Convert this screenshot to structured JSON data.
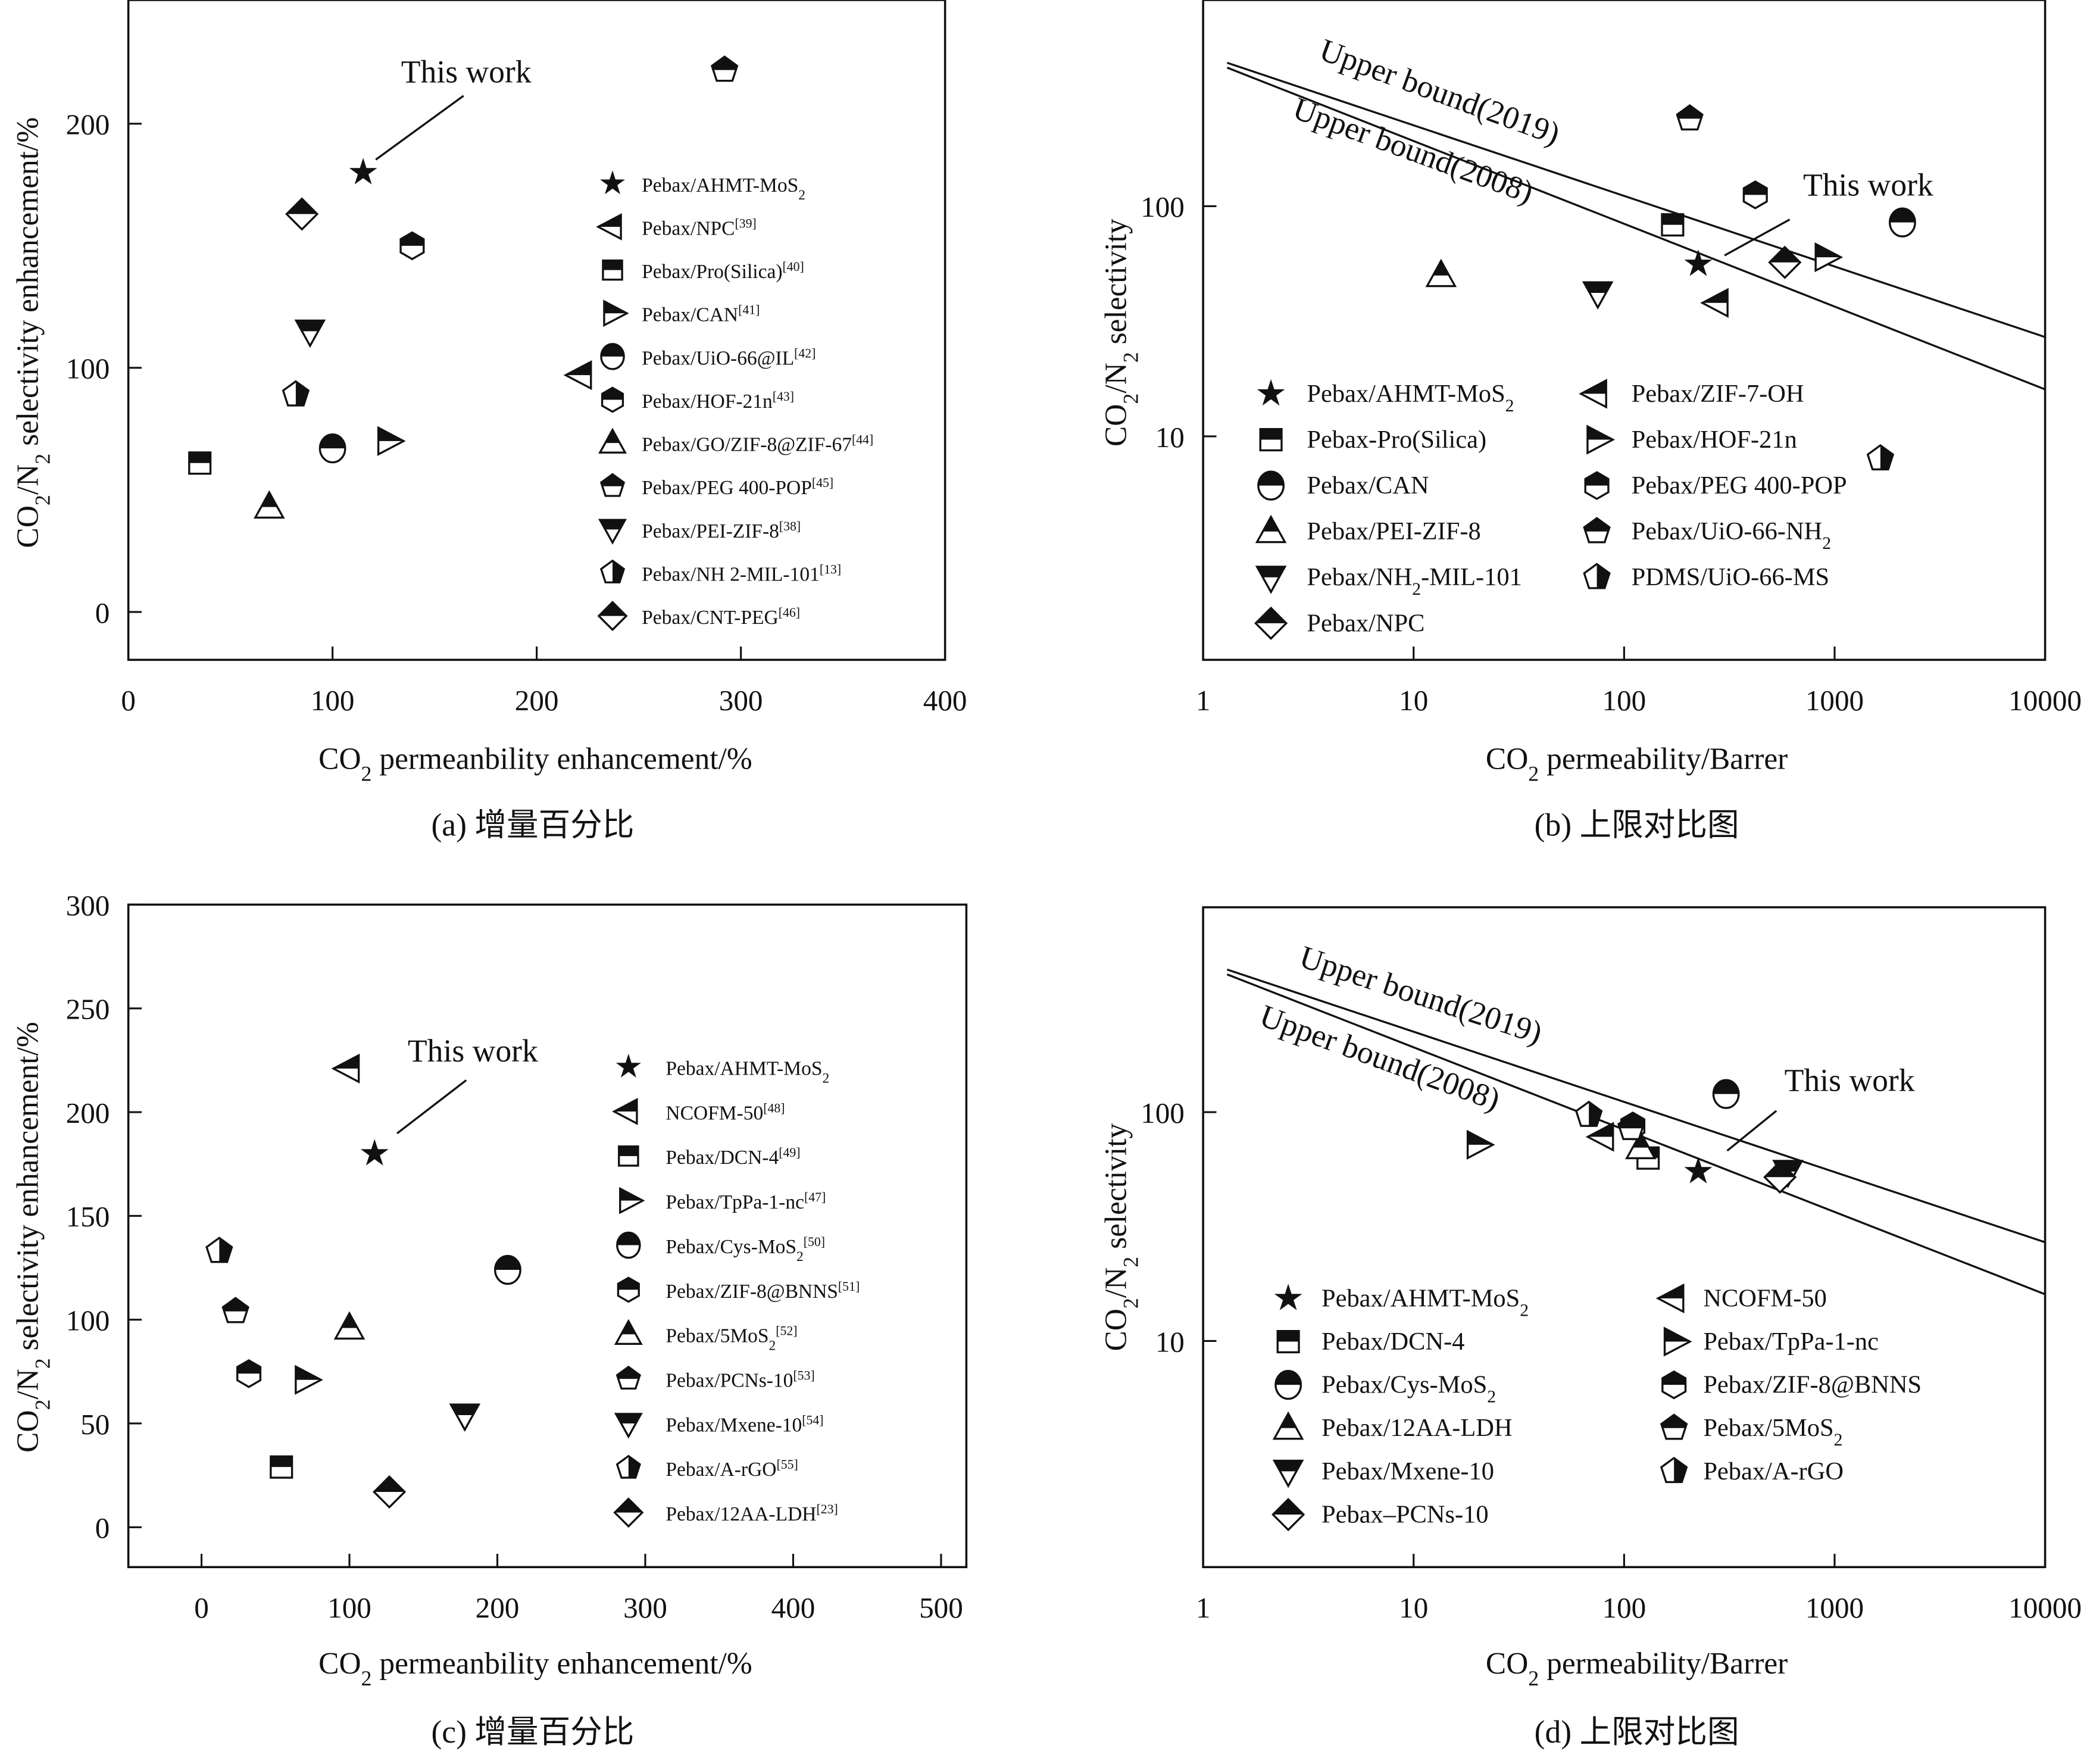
{
  "chart_data": [
    {
      "id": "a",
      "type": "scatter",
      "caption": "(a) 增量百分比",
      "xlabel": "CO2 permeanbility enhancement/%",
      "ylabel": "CO2/N2 selectivity enhancement/%",
      "xscale": "linear",
      "yscale": "linear",
      "xlim": [
        0,
        400
      ],
      "ylim": [
        -20,
        250
      ],
      "xticks": [
        0,
        100,
        200,
        300,
        400
      ],
      "yticks": [
        0,
        100,
        200
      ],
      "annotation": {
        "text": "This work",
        "target": "Pebax/AHMT-MoS2"
      },
      "legend_position": "right",
      "series": [
        {
          "name": "Pebax/AHMT-MoS2",
          "ref": "",
          "marker": "star",
          "x": 115,
          "y": 180
        },
        {
          "name": "Pebax/NPC",
          "ref": "[39]",
          "marker": "tri-left",
          "x": 222,
          "y": 97
        },
        {
          "name": "Pebax/Pro(Silica)",
          "ref": "[40]",
          "marker": "square",
          "x": 35,
          "y": 61
        },
        {
          "name": "Pebax/CAN",
          "ref": "[41]",
          "marker": "tri-right",
          "x": 127,
          "y": 70
        },
        {
          "name": "Pebax/UiO-66@IL",
          "ref": "[42]",
          "marker": "circle",
          "x": 100,
          "y": 67
        },
        {
          "name": "Pebax/HOF-21n",
          "ref": "[43]",
          "marker": "hexagon",
          "x": 139,
          "y": 150
        },
        {
          "name": "Pebax/GO/ZIF-8@ZIF-67",
          "ref": "[44]",
          "marker": "tri-up",
          "x": 69,
          "y": 43
        },
        {
          "name": "Pebax/PEG 400-POP",
          "ref": "[45]",
          "marker": "pentagon",
          "x": 292,
          "y": 222
        },
        {
          "name": "Pebax/PEI-ZIF-8",
          "ref": "[38]",
          "marker": "tri-down",
          "x": 89,
          "y": 115
        },
        {
          "name": "Pebax/NH 2-MIL-101",
          "ref": "[13]",
          "marker": "pentagon-half",
          "x": 82,
          "y": 89
        },
        {
          "name": "Pebax/CNT-PEG",
          "ref": "[46]",
          "marker": "diamond",
          "x": 85,
          "y": 163
        }
      ]
    },
    {
      "id": "b",
      "type": "scatter",
      "caption": "(b) 上限对比图",
      "xlabel": "CO2 permeability/Barrer",
      "ylabel": "CO2/N2 selectivity",
      "xscale": "log",
      "yscale": "log",
      "xlim": [
        1,
        10000
      ],
      "ylim": [
        1,
        1000
      ],
      "xticks": [
        "1",
        "10",
        "100",
        "1000",
        "10000"
      ],
      "yticks": [
        "10",
        "100"
      ],
      "annotation": {
        "text": "This work",
        "target": "Pebax/AHMT-MoS2"
      },
      "upper_bounds": [
        {
          "label": "Upper bound(2019)",
          "points": [
            [
              1.3,
              420
            ],
            [
              10000,
              27
            ]
          ]
        },
        {
          "label": "Upper bound(2008)",
          "points": [
            [
              1.3,
              400
            ],
            [
              10000,
              16
            ]
          ]
        }
      ],
      "legend_position": "bottom-left",
      "series": [
        {
          "name": "Pebax/AHMT-MoS2",
          "marker": "star",
          "x": 225,
          "y": 56
        },
        {
          "name": "Pebax-Pro(Silica)",
          "marker": "square",
          "x": 170,
          "y": 83
        },
        {
          "name": "Pebax/CAN",
          "marker": "circle",
          "x": 2100,
          "y": 85
        },
        {
          "name": "Pebax/PEI-ZIF-8",
          "marker": "tri-up",
          "x": 13.5,
          "y": 50
        },
        {
          "name": "Pebax/NH2-MIL-101",
          "marker": "tri-down",
          "x": 75,
          "y": 42
        },
        {
          "name": "Pebax/NPC",
          "marker": "diamond",
          "x": 580,
          "y": 57
        },
        {
          "name": "Pebax/ZIF-7-OH",
          "marker": "tri-left",
          "x": 280,
          "y": 38
        },
        {
          "name": "Pebax/HOF-21n",
          "marker": "tri-right",
          "x": 900,
          "y": 60
        },
        {
          "name": "Pebax/PEG 400-POP",
          "marker": "hexagon",
          "x": 420,
          "y": 112
        },
        {
          "name": "Pebax/UiO-66-NH2",
          "marker": "pentagon",
          "x": 205,
          "y": 240
        },
        {
          "name": "PDMS/UiO-66-MS",
          "marker": "pentagon-half",
          "x": 1650,
          "y": 8
        }
      ]
    },
    {
      "id": "c",
      "type": "scatter",
      "caption": "(c) 增量百分比",
      "xlabel": "CO2 permeanbility enhancement/%",
      "ylabel": "CO2/N2 selectivity enhancement/%",
      "xscale": "linear",
      "yscale": "linear",
      "xlim": [
        -50,
        500
      ],
      "ylim": [
        -20,
        300
      ],
      "xticks": [
        0,
        100,
        200,
        300,
        400,
        500
      ],
      "yticks": [
        0,
        50,
        100,
        150,
        200,
        250,
        300
      ],
      "annotation": {
        "text": "This work",
        "target": "Pebax/AHMT-MoS2"
      },
      "legend_position": "right",
      "series": [
        {
          "name": "Pebax/AHMT-MoS2",
          "ref": "",
          "marker": "star",
          "x": 117,
          "y": 180
        },
        {
          "name": "NCOFM-50",
          "ref": "[48]",
          "marker": "tri-left",
          "x": 100,
          "y": 221
        },
        {
          "name": "Pebax/DCN-4",
          "ref": "[49]",
          "marker": "square",
          "x": 54,
          "y": 29
        },
        {
          "name": "Pebax/TpPa-1-nc",
          "ref": "[47]",
          "marker": "tri-right",
          "x": 70,
          "y": 71
        },
        {
          "name": "Pebax/Cys-MoS2",
          "ref": "[50]",
          "marker": "circle",
          "x": 207,
          "y": 124
        },
        {
          "name": "Pebax/ZIF-8@BNNS",
          "ref": "[51]",
          "marker": "hexagon",
          "x": 32,
          "y": 74
        },
        {
          "name": "Pebax/5MoS2",
          "ref": "[52]",
          "marker": "tri-up",
          "x": 100,
          "y": 96
        },
        {
          "name": "Pebax/PCNs-10",
          "ref": "[53]",
          "marker": "pentagon",
          "x": 23,
          "y": 104
        },
        {
          "name": "Pebax/Mxene-10",
          "ref": "[54]",
          "marker": "tri-down",
          "x": 178,
          "y": 54
        },
        {
          "name": "Pebax/A-rGO",
          "ref": "[55]",
          "marker": "pentagon-half",
          "x": 12,
          "y": 133
        },
        {
          "name": "Pebax/12AA-LDH",
          "ref": "[23]",
          "marker": "diamond",
          "x": 127,
          "y": 17
        }
      ]
    },
    {
      "id": "d",
      "type": "scatter",
      "caption": "(d) 上限对比图",
      "xlabel": "CO2 permeability/Barrer",
      "ylabel": "CO2/N2 selectivity",
      "xscale": "log",
      "yscale": "log",
      "xlim": [
        1,
        10000
      ],
      "ylim": [
        1,
        1000
      ],
      "xticks": [
        "1",
        "10",
        "100",
        "1000",
        "10000"
      ],
      "yticks": [
        "10",
        "100"
      ],
      "annotation": {
        "text": "This work",
        "target": "Pebax/AHMT-MoS2"
      },
      "upper_bounds": [
        {
          "label": "Upper bound(2019)",
          "points": [
            [
              1.3,
              420
            ],
            [
              10000,
              27
            ]
          ]
        },
        {
          "label": "Upper bound(2008)",
          "points": [
            [
              1.3,
              400
            ],
            [
              10000,
              16
            ]
          ]
        }
      ],
      "legend_position": "bottom-left",
      "series": [
        {
          "name": "Pebax/AHMT-MoS2",
          "marker": "star",
          "x": 225,
          "y": 55
        },
        {
          "name": "Pebax/DCN-4",
          "marker": "square",
          "x": 130,
          "y": 63
        },
        {
          "name": "Pebax/Cys-MoS2",
          "marker": "circle",
          "x": 305,
          "y": 120
        },
        {
          "name": "Pebax/12AA-LDH",
          "marker": "tri-up",
          "x": 120,
          "y": 70
        },
        {
          "name": "Pebax/Mxene-10",
          "marker": "tri-down",
          "x": 600,
          "y": 55
        },
        {
          "name": "Pebax–PCNs-10",
          "marker": "diamond",
          "x": 550,
          "y": 52
        },
        {
          "name": "NCOFM-50",
          "marker": "tri-left",
          "x": 80,
          "y": 78
        },
        {
          "name": "Pebax/TpPa-1-nc",
          "marker": "tri-right",
          "x": 20,
          "y": 72
        },
        {
          "name": "Pebax/ZIF-8@BNNS",
          "marker": "hexagon",
          "x": 110,
          "y": 87
        },
        {
          "name": "Pebax/5MoS2",
          "marker": "pentagon",
          "x": 108,
          "y": 85
        },
        {
          "name": "Pebax/A-rGO",
          "marker": "pentagon-half",
          "x": 68,
          "y": 97
        }
      ]
    }
  ]
}
